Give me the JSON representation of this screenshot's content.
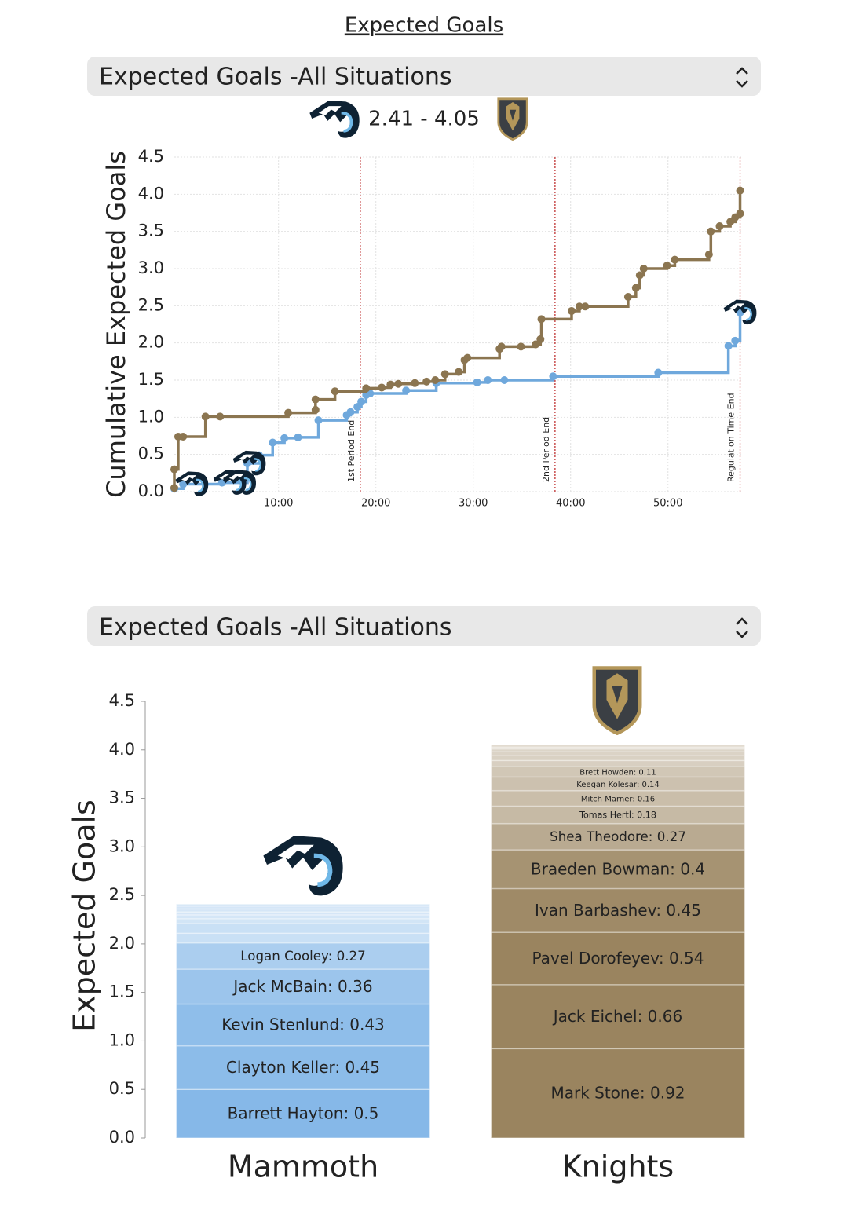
{
  "header": {
    "title": "Expected Goals"
  },
  "selectors": [
    "Expected Goals -All Situations",
    "Expected Goals -All Situations"
  ],
  "score": "2.41 - 4.05",
  "chart_data": [
    {
      "type": "line",
      "step": true,
      "ylabel": "Cumulative Expected Goals",
      "xlim": [
        -0.7,
        57.6
      ],
      "ylim": [
        0,
        4.5
      ],
      "xticks": [
        {
          "value": 10,
          "label": "10:00"
        },
        {
          "value": 20,
          "label": "20:00"
        },
        {
          "value": 30,
          "label": "30:00"
        },
        {
          "value": 40,
          "label": "40:00"
        },
        {
          "value": 50,
          "label": "50:00"
        }
      ],
      "yticks": [
        {
          "value": 0,
          "label": "0.0"
        },
        0.5,
        {
          "value": 1,
          "label": "1.0"
        },
        1.5,
        {
          "value": 2,
          "label": "2.0"
        },
        2.5,
        {
          "value": 3,
          "label": "3.0"
        },
        3.5,
        {
          "value": 4,
          "label": "4.0"
        },
        4.5
      ],
      "grid": true,
      "annotations": [
        {
          "x": 18.4,
          "label": "1st Period End"
        },
        {
          "x": 38.4,
          "label": "2nd Period End"
        },
        {
          "x": 57.4,
          "label": "Regulation Time End"
        }
      ],
      "series": [
        {
          "color": "#6fa8dc",
          "x": [
            -0.7,
            0.2,
            4.2,
            6.8,
            8.0,
            9.4,
            10.6,
            12.0,
            14.1,
            17.0,
            17.4,
            18.1,
            18.5,
            19.0,
            19.4,
            23.1,
            26.2,
            30.4,
            31.5,
            33.2,
            38.2,
            49.0,
            56.2,
            56.9,
            57.4
          ],
          "values": [
            0.04,
            0.1,
            0.12,
            0.38,
            0.49,
            0.66,
            0.72,
            0.73,
            0.96,
            1.03,
            1.07,
            1.14,
            1.21,
            1.3,
            1.32,
            1.36,
            1.46,
            1.47,
            1.5,
            1.5,
            1.55,
            1.6,
            1.96,
            2.03,
            2.41
          ],
          "goals": [
            1.1,
            5.0,
            6.0,
            7.0,
            57.4
          ]
        },
        {
          "color": "#8b7550",
          "x": [
            -0.7,
            -0.7,
            -0.3,
            0.2,
            2.5,
            4.0,
            11.0,
            13.8,
            13.8,
            15.8,
            19.0,
            20.6,
            21.5,
            22.3,
            24.0,
            25.2,
            26.1,
            27.1,
            28.5,
            29.1,
            29.4,
            32.7,
            32.9,
            34.9,
            36.4,
            36.9,
            37.0,
            40.1,
            40.9,
            41.5,
            45.9,
            46.7,
            47.1,
            47.5,
            49.9,
            50.7,
            54.2,
            54.4,
            55.3,
            56.4,
            56.9,
            57.4,
            57.4
          ],
          "values": [
            0.05,
            0.3,
            0.74,
            0.74,
            1.01,
            1.01,
            1.06,
            1.1,
            1.24,
            1.35,
            1.39,
            1.4,
            1.44,
            1.45,
            1.46,
            1.48,
            1.5,
            1.58,
            1.61,
            1.77,
            1.8,
            1.92,
            1.95,
            1.95,
            1.98,
            2.05,
            2.32,
            2.43,
            2.49,
            2.49,
            2.62,
            2.74,
            2.91,
            3.0,
            3.04,
            3.12,
            3.19,
            3.5,
            3.57,
            3.63,
            3.69,
            3.74,
            4.05
          ]
        }
      ]
    },
    {
      "type": "stacked-bar",
      "ylabel": "Expected Goals",
      "categories": [
        "Mammoth",
        "Knights"
      ],
      "ylim": [
        0,
        4.5
      ],
      "yticks": [
        {
          "value": 0,
          "label": "0.0"
        },
        0.5,
        {
          "value": 1,
          "label": "1.0"
        },
        1.5,
        {
          "value": 2,
          "label": "2.0"
        },
        2.5,
        {
          "value": 3,
          "label": "3.0"
        },
        3.5,
        {
          "value": 4,
          "label": "4.0"
        },
        4.5
      ],
      "stacks": [
        {
          "color": "#86b8e8",
          "values": [
            0.5,
            0.45,
            0.43,
            0.36,
            0.27,
            0.1,
            0.1,
            0.05,
            0.04,
            0.03,
            0.03,
            0.03,
            0.02
          ],
          "value_labels": [
            "Barrett Hayton: 0.5",
            "Clayton Keller: 0.45",
            "Kevin Stenlund: 0.43",
            "Jack McBain: 0.36",
            "Logan Cooley: 0.27",
            null,
            null,
            null,
            null,
            null,
            null,
            null,
            null
          ]
        },
        {
          "color": "#9a845f",
          "values": [
            0.92,
            0.66,
            0.54,
            0.45,
            0.4,
            0.27,
            0.18,
            0.16,
            0.14,
            0.11,
            0.06,
            0.05,
            0.04,
            0.03,
            0.02,
            0.02
          ],
          "value_labels": [
            "Mark Stone: 0.92",
            "Jack Eichel: 0.66",
            "Pavel Dorofeyev: 0.54",
            "Ivan Barbashev: 0.45",
            "Braeden Bowman: 0.4",
            "Shea Theodore: 0.27",
            "Tomas Hertl: 0.18",
            "Mitch Marner: 0.16",
            "Keegan Kolesar: 0.14",
            "Brett Howden: 0.11",
            null,
            null,
            null,
            null,
            null,
            null
          ]
        }
      ]
    }
  ]
}
